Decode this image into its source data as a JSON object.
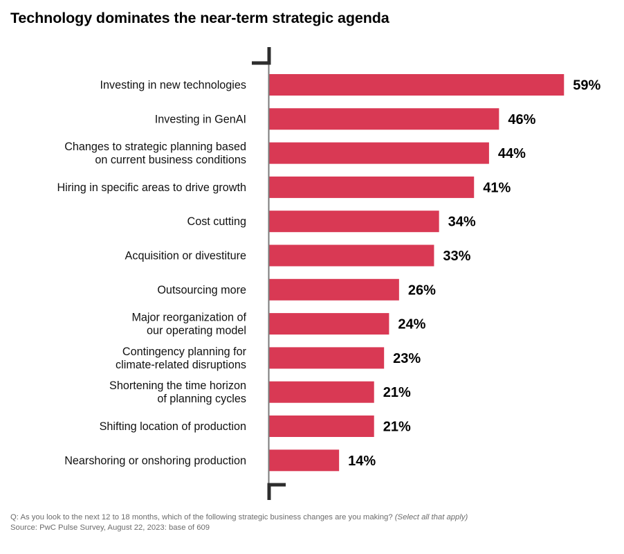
{
  "title": "Technology dominates the near-term strategic agenda",
  "chart_data": {
    "type": "bar",
    "orientation": "horizontal",
    "title": "Technology dominates the near-term strategic agenda",
    "xlabel": "",
    "ylabel": "",
    "unit": "%",
    "categories": [
      [
        "Investing in new technologies"
      ],
      [
        "Investing in GenAI"
      ],
      [
        "Changes to strategic planning based",
        "on current business conditions"
      ],
      [
        "Hiring in specific areas to drive growth"
      ],
      [
        "Cost cutting"
      ],
      [
        "Acquisition or divestiture"
      ],
      [
        "Outsourcing more"
      ],
      [
        "Major reorganization of",
        "our operating model"
      ],
      [
        "Contingency planning for",
        "climate-related disruptions"
      ],
      [
        "Shortening the time horizon",
        "of planning cycles"
      ],
      [
        "Shifting location of production"
      ],
      [
        "Nearshoring or onshoring production"
      ]
    ],
    "values": [
      59,
      46,
      44,
      41,
      34,
      33,
      26,
      24,
      23,
      21,
      21,
      14
    ],
    "value_labels": [
      "59%",
      "46%",
      "44%",
      "41%",
      "34%",
      "33%",
      "26%",
      "24%",
      "23%",
      "21%",
      "21%",
      "14%"
    ],
    "xlim": [
      0,
      60
    ],
    "grid": false,
    "legend": "none",
    "bar_color": "#d93954",
    "axis_color": "#7a7a7a",
    "bracket_color": "#2d2d2d"
  },
  "footer": {
    "question": "Q: As you look to the next 12 to 18 months, which of the following strategic business changes are you making?",
    "question_note": "(Select all that apply)",
    "source": "Source: PwC Pulse Survey, August 22, 2023: base of 609"
  }
}
